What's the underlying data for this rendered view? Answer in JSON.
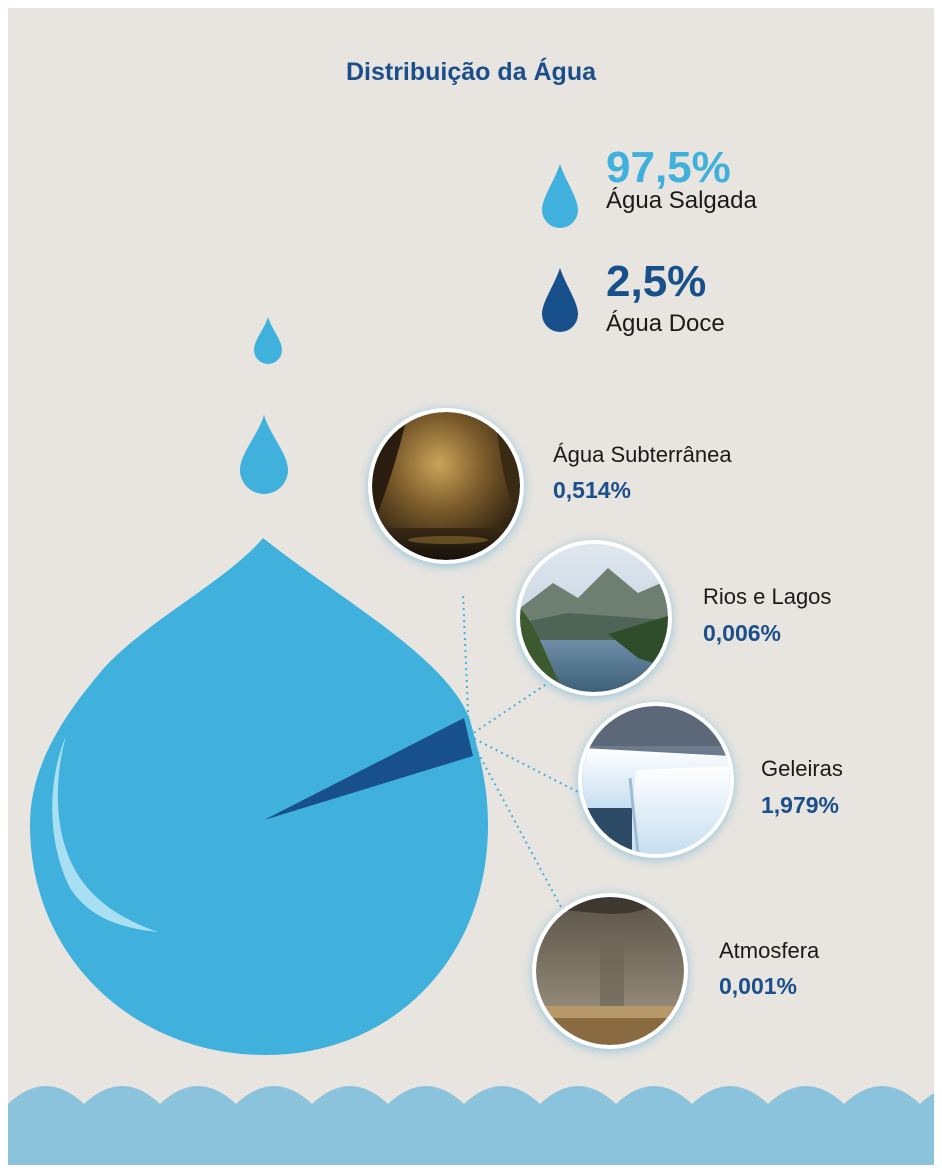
{
  "title": "Distribuição da Água",
  "legend": [
    {
      "percent": "97,5%",
      "label": "Água Salgada",
      "color": "#3fb1dc"
    },
    {
      "percent": "2,5%",
      "label": "Água Doce",
      "color": "#17508a"
    }
  ],
  "categories": [
    {
      "name": "Água Subterrânea",
      "value": "0,514%"
    },
    {
      "name": "Rios e Lagos",
      "value": "0,006%"
    },
    {
      "name": "Geleiras",
      "value": "1,979%"
    },
    {
      "name": "Atmosfera",
      "value": "0,001%"
    }
  ],
  "chart_data": {
    "type": "pie",
    "title": "Distribuição da Água",
    "series": [
      {
        "name": "Água Salgada",
        "value": 97.5,
        "color": "#3fb1dc"
      },
      {
        "name": "Água Doce",
        "value": 2.5,
        "color": "#17508a"
      }
    ],
    "breakdown_of": "Água Doce",
    "breakdown": [
      {
        "name": "Água Subterrânea",
        "value": 0.514
      },
      {
        "name": "Rios e Lagos",
        "value": 0.006
      },
      {
        "name": "Geleiras",
        "value": 1.979
      },
      {
        "name": "Atmosfera",
        "value": 0.001
      }
    ]
  },
  "colors": {
    "salt": "#3fb1dc",
    "fresh": "#17508a",
    "accent_text": "#1a4f8c",
    "wave": "#8cc3dc",
    "background": "#e8e5e0"
  },
  "icons": [
    "water-drop-icon",
    "cave-photo",
    "lake-photo",
    "glacier-photo",
    "rain-photo"
  ]
}
